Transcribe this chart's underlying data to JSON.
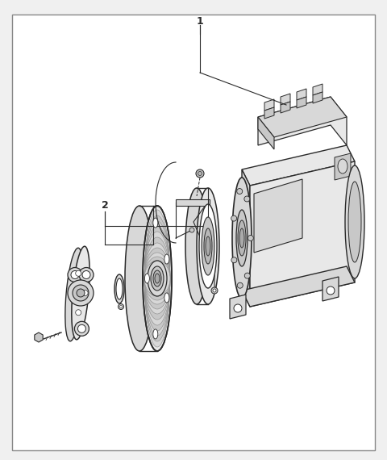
{
  "bg_color": "#f0f0f0",
  "white": "#ffffff",
  "border_color": "#888888",
  "lc": "#2a2a2a",
  "gray1": "#e8e8e8",
  "gray2": "#d8d8d8",
  "gray3": "#c8c8c8",
  "gray4": "#b8b8b8",
  "label1": "1",
  "label2": "2",
  "fig_w": 4.8,
  "fig_h": 5.7,
  "dpi": 100
}
